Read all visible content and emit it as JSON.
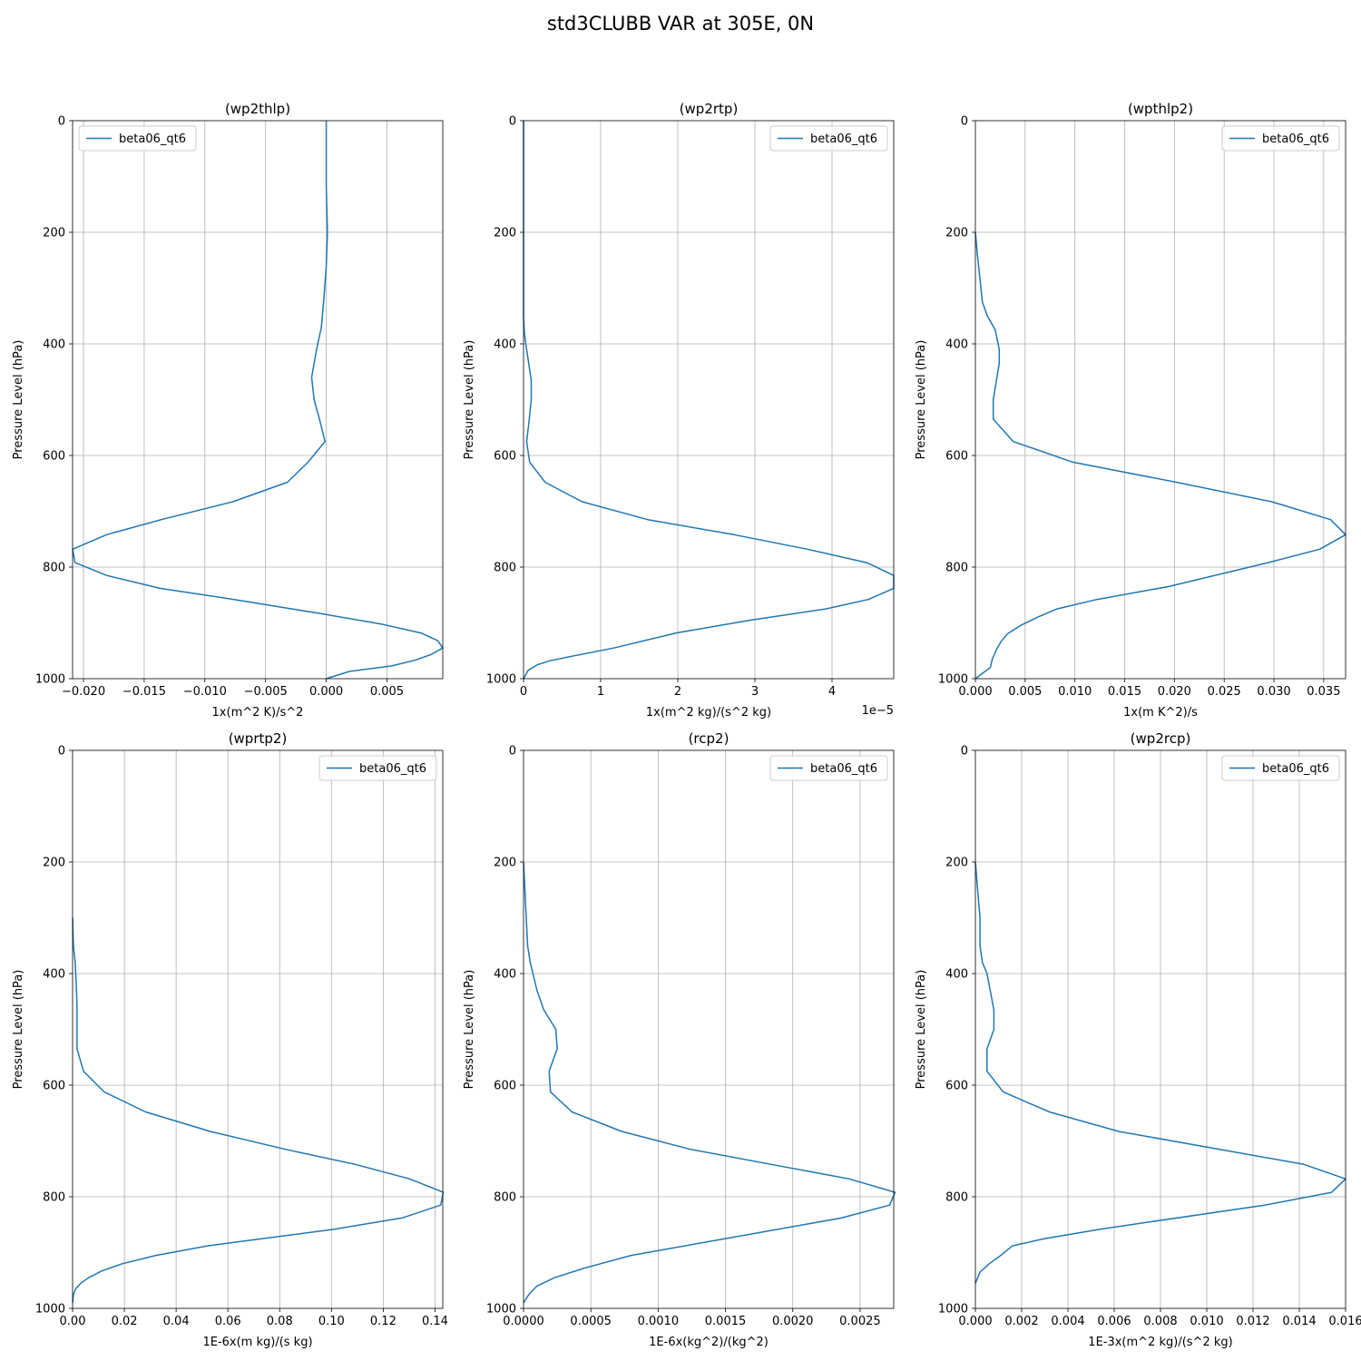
{
  "figure": {
    "title": "std3CLUBB VAR at 305E, 0N"
  },
  "colors": {
    "line": "#1f77b4",
    "grid": "#b0b0b0",
    "axis": "#000000"
  },
  "chart_data": [
    {
      "type": "line",
      "title": "(wp2thlp)",
      "xlabel": "1x(m^2 K)/s^2",
      "ylabel": "Pressure Level (hPa)",
      "xlim": [
        -0.0209,
        0.0096
      ],
      "ylim": [
        1000,
        0
      ],
      "y_inverted": true,
      "grid": true,
      "legend_position": "upper left",
      "offset_text": "",
      "xticks": [
        -0.02,
        -0.015,
        -0.01,
        -0.005,
        0.0,
        0.005
      ],
      "xtick_labels": [
        "−0.020",
        "−0.015",
        "−0.010",
        "−0.005",
        "0.000",
        "0.005"
      ],
      "yticks": [
        0,
        200,
        400,
        600,
        800,
        1000
      ],
      "ytick_labels": [
        "0",
        "200",
        "400",
        "600",
        "800",
        "1000"
      ],
      "series": [
        {
          "name": "beta06_qt6",
          "x": [
            0.0,
            0.0,
            0.0,
            0.0001,
            0.0,
            -0.0002,
            -0.0004,
            -0.0008,
            -0.0012,
            -0.001,
            -0.0005,
            -0.0001,
            -0.0015,
            -0.0032,
            -0.0077,
            -0.0136,
            -0.0181,
            -0.0209,
            -0.0207,
            -0.0181,
            -0.0137,
            -0.0076,
            0.0,
            0.0047,
            0.0078,
            0.0092,
            0.0096,
            0.0086,
            0.0073,
            0.0054,
            0.0019,
            0.0
          ],
          "y": [
            0,
            50,
            120,
            200,
            260,
            320,
            370,
            410,
            460,
            500,
            540,
            575,
            612,
            648,
            683,
            715,
            742,
            768,
            792,
            815,
            838,
            858,
            885,
            903,
            918,
            932,
            945,
            957,
            967,
            977,
            987,
            1000
          ]
        }
      ]
    },
    {
      "type": "line",
      "title": "(wp2rtp)",
      "xlabel": "1x(m^2 kg)/(s^2 kg)",
      "ylabel": "Pressure Level (hPa)",
      "xlim": [
        0,
        4.8e-05
      ],
      "ylim": [
        1000,
        0
      ],
      "y_inverted": true,
      "grid": true,
      "legend_position": "upper right",
      "offset_text": "1e−5",
      "xticks": [
        0,
        1e-05,
        2e-05,
        3e-05,
        4e-05
      ],
      "xtick_labels": [
        "0",
        "1",
        "2",
        "3",
        "4"
      ],
      "yticks": [
        0,
        200,
        400,
        600,
        800,
        1000
      ],
      "ytick_labels": [
        "0",
        "200",
        "400",
        "600",
        "800",
        "1000"
      ],
      "series": [
        {
          "name": "beta06_qt6",
          "x": [
            0.0,
            0.0,
            0.0,
            1e-07,
            3e-07,
            1e-06,
            1e-06,
            7e-07,
            4e-07,
            8e-07,
            2.8e-06,
            7.6e-06,
            1.61e-05,
            2.73e-05,
            3.68e-05,
            4.45e-05,
            4.8e-05,
            4.8e-05,
            4.47e-05,
            3.92e-05,
            2.95e-05,
            1.98e-05,
            1.17e-05,
            6.2e-06,
            3.4e-06,
            1.8e-06,
            6e-07,
            0.0
          ],
          "y": [
            0,
            200,
            350,
            380,
            400,
            465,
            500,
            540,
            575,
            612,
            648,
            683,
            715,
            742,
            768,
            792,
            815,
            838,
            858,
            875,
            895,
            918,
            945,
            960,
            968,
            975,
            985,
            1000
          ]
        }
      ]
    },
    {
      "type": "line",
      "title": "(wpthlp2)",
      "xlabel": "1x(m K^2)/s",
      "ylabel": "Pressure Level (hPa)",
      "xlim": [
        0,
        0.0372
      ],
      "ylim": [
        1000,
        0
      ],
      "y_inverted": true,
      "grid": true,
      "legend_position": "upper right",
      "offset_text": "",
      "xticks": [
        0.0,
        0.005,
        0.01,
        0.015,
        0.02,
        0.025,
        0.03,
        0.035
      ],
      "xtick_labels": [
        "0.000",
        "0.005",
        "0.010",
        "0.015",
        "0.020",
        "0.025",
        "0.030",
        "0.035"
      ],
      "yticks": [
        0,
        200,
        400,
        600,
        800,
        1000
      ],
      "ytick_labels": [
        "0",
        "200",
        "400",
        "600",
        "800",
        "1000"
      ],
      "series": [
        {
          "name": "beta06_qt6",
          "x": [
            0.0,
            0.0002,
            0.0005,
            0.0007,
            0.0012,
            0.002,
            0.0024,
            0.0024,
            0.0018,
            0.0018,
            0.0038,
            0.0098,
            0.0202,
            0.0298,
            0.0357,
            0.0372,
            0.0346,
            0.0294,
            0.0194,
            0.0122,
            0.0082,
            0.0062,
            0.0045,
            0.0032,
            0.0026,
            0.0022,
            0.0017,
            0.0015,
            0.0,
            0.0
          ],
          "y": [
            200,
            240,
            290,
            325,
            350,
            375,
            410,
            435,
            500,
            535,
            575,
            612,
            648,
            683,
            715,
            742,
            768,
            792,
            835,
            858,
            875,
            890,
            905,
            920,
            933,
            945,
            965,
            980,
            1000,
            1000
          ]
        }
      ]
    },
    {
      "type": "line",
      "title": "(wprtp2)",
      "xlabel": "1E-6x(m kg)/(s kg)",
      "ylabel": "Pressure Level (hPa)",
      "xlim": [
        0,
        0.143
      ],
      "ylim": [
        1000,
        0
      ],
      "y_inverted": true,
      "grid": true,
      "legend_position": "upper right",
      "offset_text": "",
      "xticks": [
        0.0,
        0.02,
        0.04,
        0.06,
        0.08,
        0.1,
        0.12,
        0.14
      ],
      "xtick_labels": [
        "0.00",
        "0.02",
        "0.04",
        "0.06",
        "0.08",
        "0.10",
        "0.12",
        "0.14"
      ],
      "yticks": [
        0,
        200,
        400,
        600,
        800,
        1000
      ],
      "ytick_labels": [
        "0",
        "200",
        "400",
        "600",
        "800",
        "1000"
      ],
      "series": [
        {
          "name": "beta06_qt6",
          "x": [
            0.0,
            0.0003,
            0.001,
            0.0015,
            0.0017,
            0.0017,
            0.0042,
            0.0122,
            0.0282,
            0.0532,
            0.0822,
            0.1092,
            0.1302,
            0.1432,
            0.1422,
            0.1272,
            0.1012,
            0.0522,
            0.0322,
            0.0192,
            0.0112,
            0.0062,
            0.0032,
            0.0012,
            0.0003,
            0.0
          ],
          "y": [
            300,
            350,
            380,
            430,
            460,
            535,
            575,
            612,
            648,
            683,
            715,
            742,
            768,
            792,
            815,
            838,
            858,
            888,
            905,
            920,
            933,
            945,
            955,
            965,
            975,
            990
          ]
        }
      ]
    },
    {
      "type": "line",
      "title": "(rcp2)",
      "xlabel": "1E-6x(kg^2)/(kg^2)",
      "ylabel": "Pressure Level (hPa)",
      "xlim": [
        0,
        0.00275
      ],
      "ylim": [
        1000,
        0
      ],
      "y_inverted": true,
      "grid": true,
      "legend_position": "upper right",
      "offset_text": "",
      "xticks": [
        0.0,
        0.0005,
        0.001,
        0.0015,
        0.002,
        0.0025
      ],
      "xtick_labels": [
        "0.0000",
        "0.0005",
        "0.0010",
        "0.0015",
        "0.0020",
        "0.0025"
      ],
      "yticks": [
        0,
        200,
        400,
        600,
        800,
        1000
      ],
      "ytick_labels": [
        "0",
        "200",
        "400",
        "600",
        "800",
        "1000"
      ],
      "series": [
        {
          "name": "beta06_qt6",
          "x": [
            0.0,
            1e-05,
            2e-05,
            3e-05,
            5e-05,
            0.0001,
            0.00015,
            0.00024,
            0.00025,
            0.00019,
            0.0002,
            0.00036,
            0.00073,
            0.00124,
            0.00184,
            0.00242,
            0.00276,
            0.00272,
            0.00236,
            0.0015,
            0.0008,
            0.00045,
            0.00023,
            0.0001,
            4e-05,
            0.0
          ],
          "y": [
            200,
            250,
            300,
            350,
            380,
            430,
            465,
            500,
            535,
            575,
            612,
            648,
            683,
            715,
            742,
            768,
            792,
            815,
            838,
            875,
            905,
            928,
            945,
            960,
            975,
            990
          ]
        }
      ]
    },
    {
      "type": "line",
      "title": "(wp2rcp)",
      "xlabel": "1E-3x(m^2 kg)/(s^2 kg)",
      "ylabel": "Pressure Level (hPa)",
      "xlim": [
        0,
        0.016
      ],
      "ylim": [
        1000,
        0
      ],
      "y_inverted": true,
      "grid": true,
      "legend_position": "upper right",
      "offset_text": "",
      "xticks": [
        0.0,
        0.002,
        0.004,
        0.006,
        0.008,
        0.01,
        0.012,
        0.014,
        0.016
      ],
      "xtick_labels": [
        "0.000",
        "0.002",
        "0.004",
        "0.006",
        "0.008",
        "0.010",
        "0.012",
        "0.014",
        "0.016"
      ],
      "yticks": [
        0,
        200,
        400,
        600,
        800,
        1000
      ],
      "ytick_labels": [
        "0",
        "200",
        "400",
        "600",
        "800",
        "1000"
      ],
      "series": [
        {
          "name": "beta06_qt6",
          "x": [
            0.0,
            0.0001,
            0.0002,
            0.0002,
            0.0003,
            0.0005,
            0.0008,
            0.0008,
            0.0005,
            0.0005,
            0.0005,
            0.0012,
            0.0032,
            0.0062,
            0.0142,
            0.016,
            0.0154,
            0.0125,
            0.0054,
            0.003,
            0.0016,
            0.0011,
            0.0006,
            0.0002,
            0.0
          ],
          "y": [
            200,
            250,
            300,
            350,
            380,
            400,
            465,
            500,
            535,
            575,
            575,
            612,
            648,
            683,
            742,
            768,
            792,
            815,
            858,
            875,
            888,
            905,
            920,
            935,
            955
          ]
        }
      ]
    }
  ]
}
